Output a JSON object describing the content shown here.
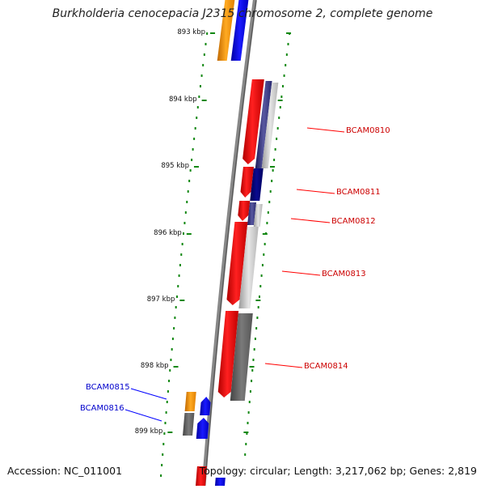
{
  "title": "Burkholderia cenocepacia J2315 chromosome 2, complete genome",
  "footer": {
    "accession": "Accession: NC_011001",
    "summary": "Topology: circular; Length: 3,217,062 bp; Genes: 2,819"
  },
  "ticks": [
    "893 kbp",
    "894 kbp",
    "895 kbp",
    "896 kbp",
    "897 kbp",
    "898 kbp",
    "899 kbp"
  ],
  "genes_right": [
    "BCAM0810",
    "BCAM0811",
    "BCAM0812",
    "BCAM0813",
    "BCAM0814"
  ],
  "genes_left": [
    "BCAM0815",
    "BCAM0816"
  ],
  "colors": {
    "forward_cds": "#ff0000",
    "reverse_cds": "#0000ff",
    "gene_blue_label": "#0000cc",
    "gene_red_label": "#cc0000",
    "orange": "#ff9900",
    "backbone": "#888888",
    "dots": "#118811"
  }
}
